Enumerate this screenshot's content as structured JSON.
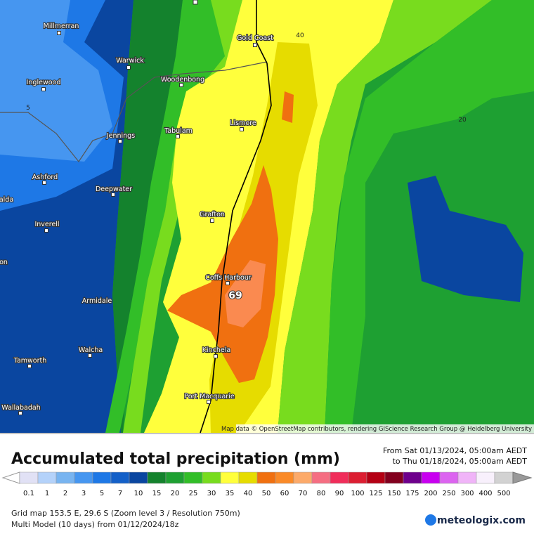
{
  "map": {
    "places": [
      {
        "label": "Gold Coast"
      },
      {
        "label": "Millmerran"
      },
      {
        "label": "Warwick"
      },
      {
        "label": "Inglewood"
      },
      {
        "label": "Woodenbong"
      },
      {
        "label": "Lismore"
      },
      {
        "label": "Tabulam"
      },
      {
        "label": "Jennings"
      },
      {
        "label": "Ashford"
      },
      {
        "label": "Deepwater"
      },
      {
        "label": "alda"
      },
      {
        "label": "Inverell"
      },
      {
        "label": "Grafton"
      },
      {
        "label": "on"
      },
      {
        "label": "Coffs Harbour"
      },
      {
        "label": "Armidale"
      },
      {
        "label": "Kinchela"
      },
      {
        "label": "Walcha"
      },
      {
        "label": "Tamworth"
      },
      {
        "label": "Port Macquarie"
      },
      {
        "label": "Wallabadah"
      }
    ],
    "contour_labels": [
      "40",
      "20",
      "5"
    ],
    "max_label": "69",
    "attribution": "Map data © OpenStreetMap contributors, rendering GIScience Research Group @ Heidelberg University"
  },
  "legend": {
    "title": "Accumulated total precipitation (mm)",
    "from": "From Sat 01/13/2024, 05:00am AEDT",
    "to": "to Thu 01/18/2024, 05:00am AEDT",
    "levels": [
      {
        "label": "0.1",
        "color": "#e1e1f5"
      },
      {
        "label": "1",
        "color": "#b4d2fa"
      },
      {
        "label": "2",
        "color": "#78b4f0"
      },
      {
        "label": "3",
        "color": "#4696f0"
      },
      {
        "label": "5",
        "color": "#1e78e6"
      },
      {
        "label": "7",
        "color": "#1460c8"
      },
      {
        "label": "10",
        "color": "#0a46a0"
      },
      {
        "label": "15",
        "color": "#14822d"
      },
      {
        "label": "20",
        "color": "#1ea032"
      },
      {
        "label": "25",
        "color": "#32be28"
      },
      {
        "label": "30",
        "color": "#78dc1e"
      },
      {
        "label": "35",
        "color": "#ffff3c"
      },
      {
        "label": "40",
        "color": "#e6dc00"
      },
      {
        "label": "50",
        "color": "#f07010"
      },
      {
        "label": "60",
        "color": "#fa8a28"
      },
      {
        "label": "70",
        "color": "#fcaa6a"
      },
      {
        "label": "80",
        "color": "#f56e82"
      },
      {
        "label": "90",
        "color": "#f02d5a"
      },
      {
        "label": "100",
        "color": "#dc1e32"
      },
      {
        "label": "125",
        "color": "#b40014"
      },
      {
        "label": "150",
        "color": "#82001e"
      },
      {
        "label": "175",
        "color": "#6e008c"
      },
      {
        "label": "200",
        "color": "#c800f0"
      },
      {
        "label": "250",
        "color": "#dc64f0"
      },
      {
        "label": "300",
        "color": "#f0b4f8"
      },
      {
        "label": "400",
        "color": "#f8f0fc"
      },
      {
        "label": "500",
        "color": "#d2d2d2"
      }
    ]
  },
  "footer": {
    "grid": "Grid map 153.5 E, 29.6 S (Zoom level 3 / Resolution 750m)",
    "model": "Multi Model (10 days) from 01/12/2024/18z",
    "logo": "meteologix.com"
  }
}
